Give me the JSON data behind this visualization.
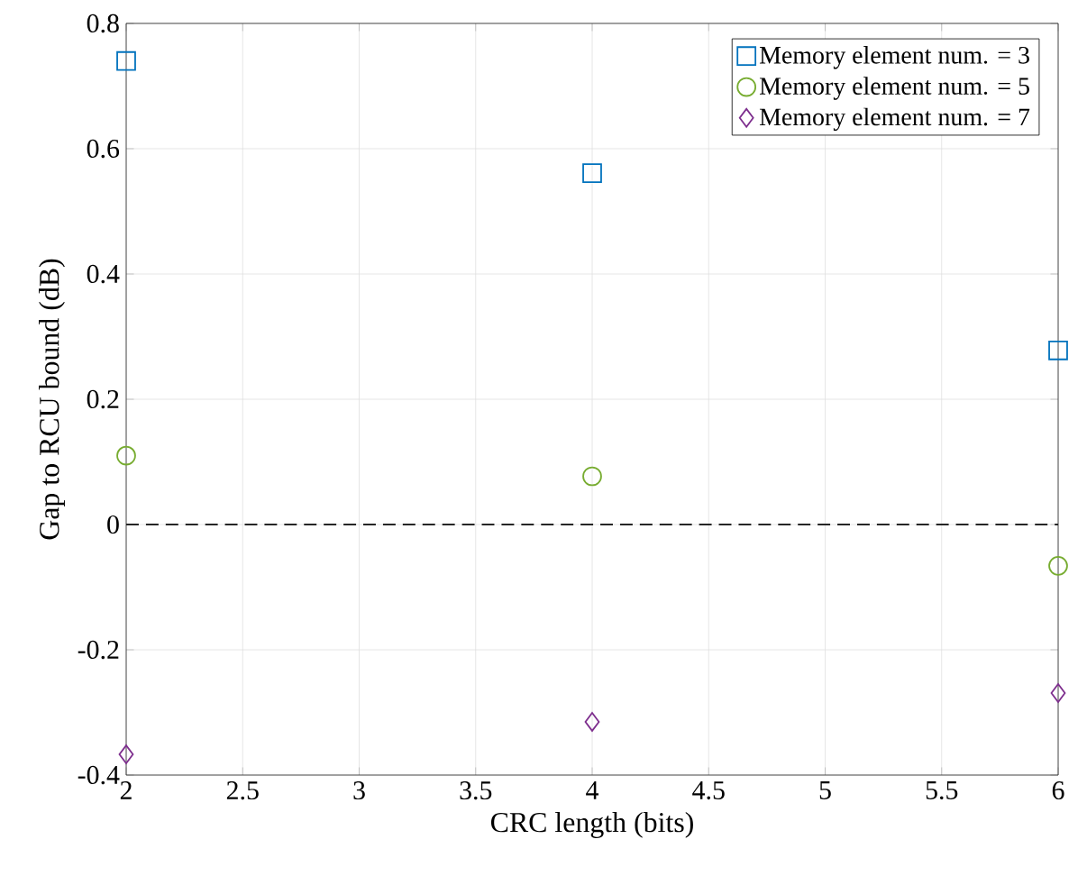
{
  "chart_data": {
    "type": "scatter",
    "xlabel": "CRC length (bits)",
    "ylabel": "Gap to RCU bound (dB)",
    "x": [
      2,
      4,
      6
    ],
    "series": [
      {
        "name": "Memory element num. = 3",
        "color": "#0072bd",
        "marker": "square",
        "values": [
          0.74,
          0.561,
          0.278
        ]
      },
      {
        "name": "Memory element num. = 5",
        "color": "#77ac30",
        "marker": "circle",
        "values": [
          0.11,
          0.077,
          -0.066
        ]
      },
      {
        "name": "Memory element num. = 7",
        "color": "#7e2f8e",
        "marker": "diamond",
        "values": [
          -0.367,
          -0.315,
          -0.269
        ]
      }
    ],
    "xlim": [
      2,
      6
    ],
    "xticks": [
      2,
      2.5,
      3,
      3.5,
      4,
      4.5,
      5,
      5.5,
      6
    ],
    "ylim": [
      -0.4,
      0.8
    ],
    "yticks": [
      -0.4,
      -0.2,
      0,
      0.2,
      0.4,
      0.6,
      0.8
    ],
    "ref_lines": [
      {
        "axis": "y",
        "value": 0,
        "color": "#262626",
        "line_style": "dashed"
      }
    ],
    "grid": true,
    "legend": "top right"
  }
}
